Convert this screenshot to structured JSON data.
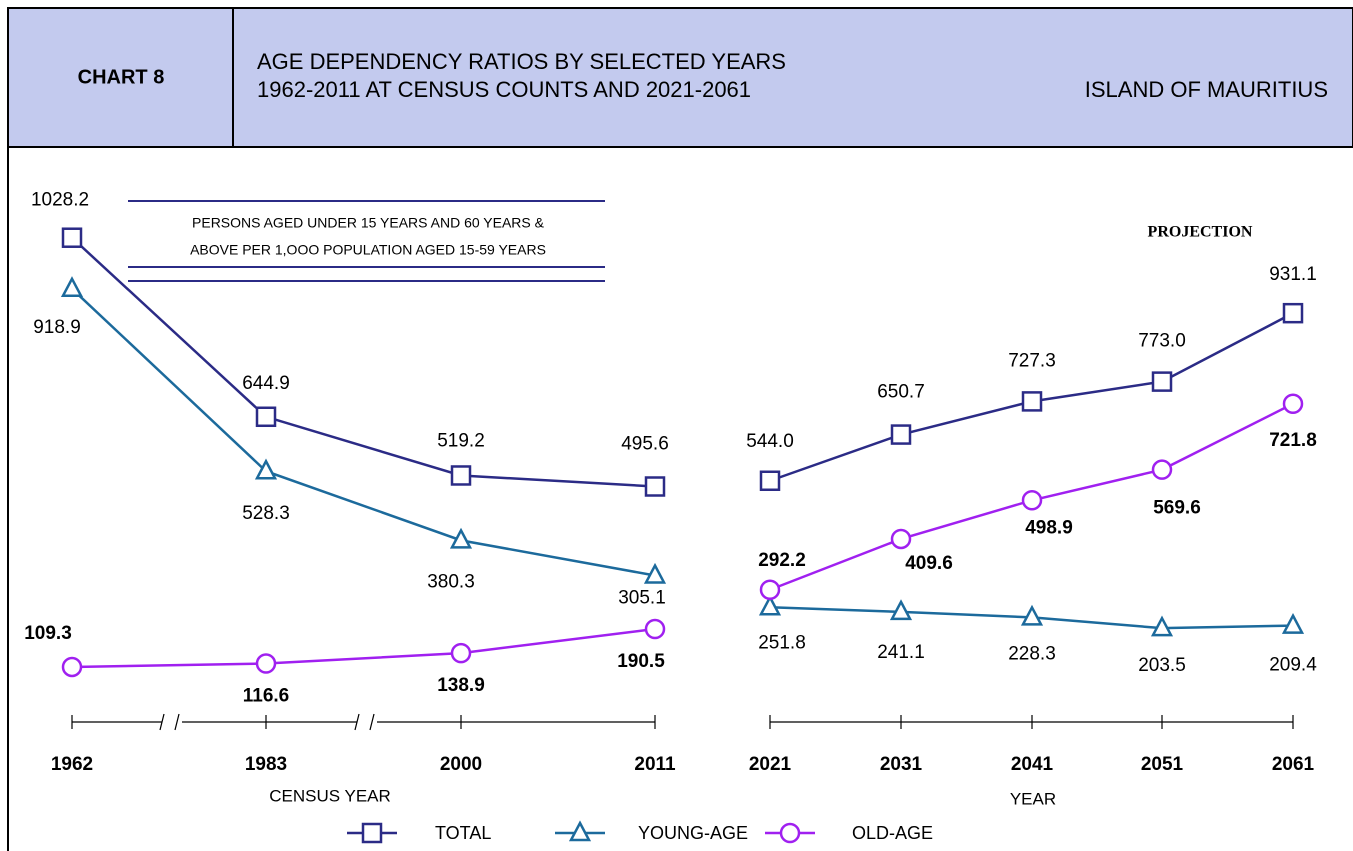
{
  "header": {
    "chart_label": "CHART 8",
    "title_lines": [
      "AGE DEPENDENCY RATIOS BY SELECTED YEARS",
      "1962-2011 AT CENSUS COUNTS AND 2021-2061"
    ],
    "region": "ISLAND OF MAURITIUS"
  },
  "chart_data": [
    {
      "type": "line",
      "xlabel": "CENSUS YEAR",
      "annotation": [
        "PERSONS AGED UNDER 15 YEARS AND 60 YEARS &",
        "ABOVE PER 1,OOO POPULATION AGED 15-59 YEARS"
      ],
      "categories": [
        "1962",
        "1983",
        "2000",
        "2011"
      ],
      "ylim": [
        0,
        1216
      ],
      "series": [
        {
          "name": "TOTAL",
          "color": "#2b2b86",
          "marker": "square",
          "values": [
            1028.2,
            644.9,
            519.2,
            495.6
          ],
          "value_labels": [
            "1028.2",
            "644.9",
            "519.2",
            "495.6"
          ]
        },
        {
          "name": "YOUNG-AGE",
          "color": "#1c6a9c",
          "marker": "triangle",
          "values": [
            918.9,
            528.3,
            380.3,
            305.1
          ],
          "value_labels": [
            "918.9",
            "528.3",
            "380.3",
            "305.1"
          ]
        },
        {
          "name": "OLD-AGE",
          "color": "#a020f0",
          "marker": "circle",
          "values": [
            109.3,
            116.6,
            138.9,
            190.5
          ],
          "value_labels": [
            "109.3",
            "116.6",
            "138.9",
            "190.5"
          ]
        }
      ]
    },
    {
      "type": "line",
      "xlabel": "YEAR",
      "annotation": [
        "PROJECTION"
      ],
      "categories": [
        "2021",
        "2031",
        "2041",
        "2051",
        "2061"
      ],
      "ylim": [
        -4,
        1308
      ],
      "series": [
        {
          "color": "#2b2b86",
          "marker": "square",
          "values": [
            544.0,
            650.7,
            727.3,
            773.0,
            931.1
          ],
          "value_labels": [
            "544.0",
            "650.7",
            "727.3",
            "773.0",
            "931.1"
          ]
        },
        {
          "color": "#1c6a9c",
          "marker": "triangle",
          "values": [
            251.8,
            241.1,
            228.3,
            203.5,
            209.4
          ],
          "value_labels": [
            "251.8",
            "241.1",
            "228.3",
            "203.5",
            "209.4"
          ]
        },
        {
          "color": "#a020f0",
          "marker": "circle",
          "values": [
            292.2,
            409.6,
            498.9,
            569.6,
            721.8
          ],
          "value_labels": [
            "292.2",
            "409.6",
            "498.9",
            "569.6",
            "721.8"
          ]
        }
      ]
    }
  ]
}
